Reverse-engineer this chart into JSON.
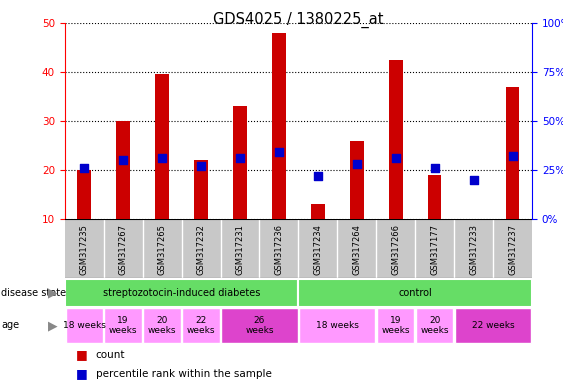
{
  "title": "GDS4025 / 1380225_at",
  "samples": [
    "GSM317235",
    "GSM317267",
    "GSM317265",
    "GSM317232",
    "GSM317231",
    "GSM317236",
    "GSM317234",
    "GSM317264",
    "GSM317266",
    "GSM317177",
    "GSM317233",
    "GSM317237"
  ],
  "counts": [
    20,
    30,
    39.5,
    22,
    33,
    48,
    13,
    26,
    42.5,
    19,
    10,
    37
  ],
  "percentiles": [
    26,
    30,
    31,
    27,
    31,
    34,
    22,
    28,
    31,
    26,
    20,
    32
  ],
  "ylim_left": [
    10,
    50
  ],
  "ylim_right": [
    0,
    100
  ],
  "yticks_left": [
    10,
    20,
    30,
    40,
    50
  ],
  "yticks_right": [
    0,
    25,
    50,
    75,
    100
  ],
  "bar_color": "#cc0000",
  "dot_color": "#0000cc",
  "bar_width": 0.35,
  "dot_size": 28,
  "gray_bg": "#c8c8c8",
  "green_color": "#66dd66",
  "pink_light": "#ff99ff",
  "pink_dark": "#dd44cc",
  "age_groups": [
    {
      "label": "18 weeks",
      "samples": [
        0,
        1
      ],
      "dark": false
    },
    {
      "label": "19\nweeks",
      "samples": [
        1,
        2
      ],
      "dark": false
    },
    {
      "label": "20\nweeks",
      "samples": [
        2,
        3
      ],
      "dark": false
    },
    {
      "label": "22\nweeks",
      "samples": [
        3,
        4
      ],
      "dark": false
    },
    {
      "label": "26\nweeks",
      "samples": [
        4,
        6
      ],
      "dark": true
    },
    {
      "label": "18 weeks",
      "samples": [
        6,
        8
      ],
      "dark": false
    },
    {
      "label": "19\nweeks",
      "samples": [
        8,
        9
      ],
      "dark": false
    },
    {
      "label": "20\nweeks",
      "samples": [
        9,
        10
      ],
      "dark": false
    },
    {
      "label": "22 weeks",
      "samples": [
        10,
        12
      ],
      "dark": true
    }
  ],
  "disease_groups": [
    {
      "label": "streptozotocin-induced diabetes",
      "samples": [
        0,
        6
      ]
    },
    {
      "label": "control",
      "samples": [
        6,
        12
      ]
    }
  ]
}
